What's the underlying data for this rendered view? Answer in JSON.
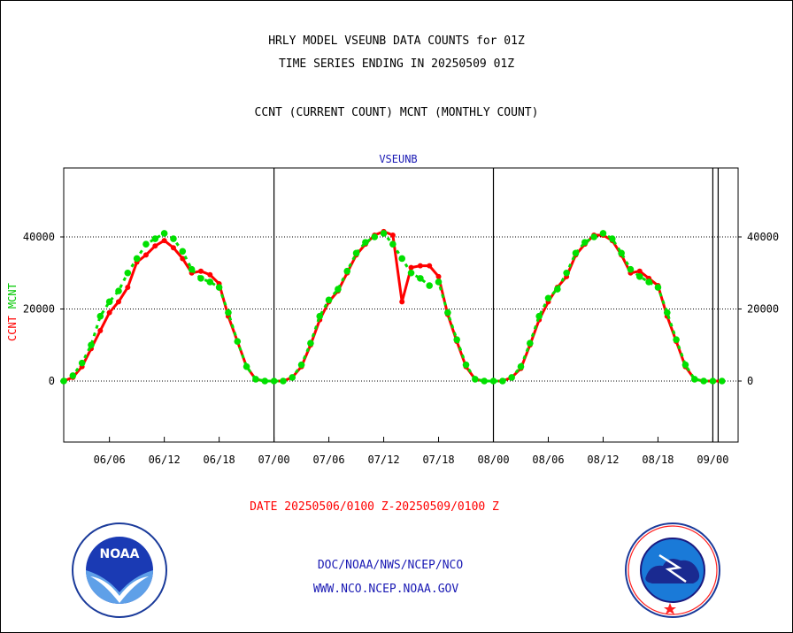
{
  "titles": {
    "line1": "HRLY MODEL VSEUNB DATA COUNTS for 01Z",
    "line2": "TIME SERIES ENDING IN 20250509 01Z",
    "line3": "CCNT (CURRENT COUNT) MCNT (MONTHLY COUNT)"
  },
  "footer": {
    "date_range": "DATE 20250506/0100 Z-20250509/0100 Z",
    "org": "DOC/NOAA/NWS/NCEP/NCO",
    "url": "WWW.NCO.NCEP.NOAA.GOV"
  },
  "colors": {
    "ccnt": "#ff0000",
    "mcnt": "#00e000",
    "title_blue": "#1a1ab4"
  },
  "chart_data": {
    "type": "line",
    "panel_label": "VSEUNB",
    "ylabel_red": "CCNT",
    "ylabel_green": "MCNT",
    "ylim": [
      -17000,
      58000
    ],
    "yticks": [
      0,
      20000,
      40000
    ],
    "ytick_labels": [
      "0",
      "20000",
      "40000"
    ],
    "xlim": [
      0,
      73
    ],
    "xticks": [
      5,
      11,
      17,
      23,
      29,
      35,
      41,
      47,
      53,
      59,
      65,
      71
    ],
    "xtick_labels": [
      "06/06",
      "06/12",
      "06/18",
      "07/00",
      "07/06",
      "07/12",
      "07/18",
      "08/00",
      "08/06",
      "08/12",
      "08/18",
      "09/00"
    ],
    "day_boundaries": [
      23,
      47,
      71
    ],
    "grid": "horizontal at 20000 and 40000",
    "series": [
      {
        "name": "CCNT",
        "x": [
          0,
          1,
          2,
          3,
          4,
          5,
          6,
          7,
          8,
          9,
          10,
          11,
          12,
          13,
          14,
          15,
          16,
          17,
          18,
          19,
          20,
          21,
          22,
          23,
          24,
          25,
          26,
          27,
          28,
          29,
          30,
          31,
          32,
          33,
          34,
          35,
          36,
          37,
          38,
          39,
          40,
          41,
          42,
          43,
          44,
          45,
          46,
          47,
          48,
          49,
          50,
          51,
          52,
          53,
          54,
          55,
          56,
          57,
          58,
          59,
          60,
          61,
          62,
          63,
          64,
          65,
          66,
          67,
          68,
          69,
          70,
          71,
          72
        ],
        "y": [
          0,
          1000,
          4000,
          9000,
          14000,
          19000,
          22000,
          26000,
          33000,
          35000,
          37500,
          39000,
          37000,
          34000,
          30000,
          30500,
          29500,
          27000,
          18000,
          11000,
          4000,
          500,
          0,
          0,
          0,
          1000,
          4000,
          10000,
          17000,
          22000,
          25000,
          30000,
          35000,
          38000,
          40500,
          41500,
          40500,
          22000,
          31500,
          32000,
          32000,
          29000,
          18500,
          11000,
          4000,
          500,
          0,
          0,
          0,
          1000,
          3500,
          10000,
          17000,
          22000,
          26000,
          29000,
          35000,
          38000,
          40500,
          40500,
          39000,
          35000,
          30000,
          30500,
          28500,
          26500,
          18000,
          11000,
          4000,
          500,
          0,
          0,
          0
        ]
      },
      {
        "name": "MCNT",
        "x": [
          0,
          1,
          2,
          3,
          4,
          5,
          6,
          7,
          8,
          9,
          10,
          11,
          12,
          13,
          14,
          15,
          16,
          17,
          18,
          19,
          20,
          21,
          22,
          23,
          24,
          25,
          26,
          27,
          28,
          29,
          30,
          31,
          32,
          33,
          34,
          35,
          36,
          37,
          38,
          39,
          40,
          41,
          42,
          43,
          44,
          45,
          46,
          47,
          48,
          49,
          50,
          51,
          52,
          53,
          54,
          55,
          56,
          57,
          58,
          59,
          60,
          61,
          62,
          63,
          64,
          65,
          66,
          67,
          68,
          69,
          70,
          71,
          72
        ],
        "y": [
          0,
          1500,
          5000,
          10000,
          18000,
          22000,
          25000,
          30000,
          34000,
          38000,
          39500,
          41000,
          39500,
          36000,
          31000,
          28500,
          27500,
          26000,
          19000,
          11000,
          4000,
          500,
          0,
          0,
          0,
          1000,
          4500,
          10500,
          18000,
          22500,
          25500,
          30500,
          35500,
          38500,
          40000,
          41000,
          38000,
          34000,
          30000,
          28500,
          26500,
          27500,
          19000,
          11500,
          4500,
          500,
          0,
          0,
          0,
          1000,
          4000,
          10500,
          18000,
          23000,
          25500,
          30000,
          35500,
          38500,
          40000,
          41000,
          39500,
          35500,
          31000,
          29000,
          27500,
          26000,
          19000,
          11500,
          4500,
          500,
          0,
          0,
          0
        ]
      }
    ]
  }
}
